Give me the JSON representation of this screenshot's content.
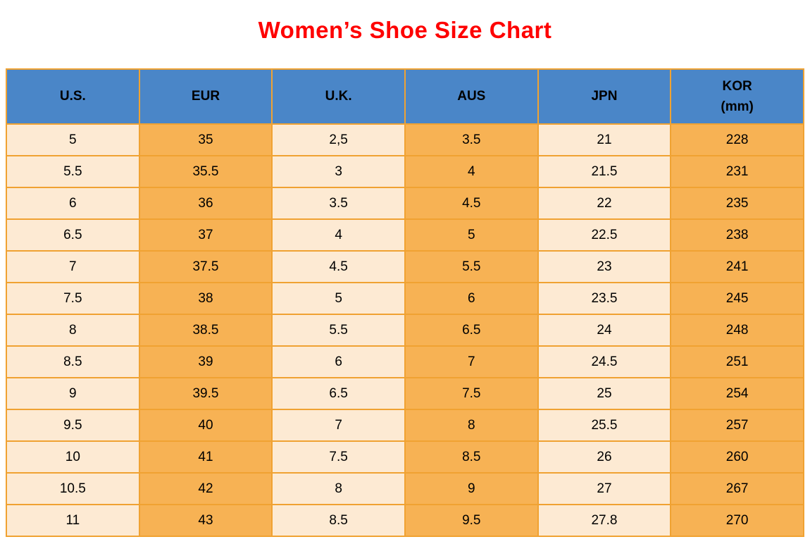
{
  "page_title": "Women’s Shoe Size Chart",
  "colors": {
    "title_red": "#fe0000",
    "header_blue": "#4a86c8",
    "cell_light": "#fdead3",
    "cell_orange": "#f7b254",
    "grid_orange": "#f0a232",
    "text_black": "#000000"
  },
  "chart_data": {
    "type": "table",
    "title": "Women’s Shoe Size Chart",
    "columns": [
      "U.S.",
      "EUR",
      "U.K.",
      "AUS",
      "JPN",
      "KOR\n(mm)"
    ],
    "rows": [
      [
        "5",
        "35",
        "2,5",
        "3.5",
        "21",
        "228"
      ],
      [
        "5.5",
        "35.5",
        "3",
        "4",
        "21.5",
        "231"
      ],
      [
        "6",
        "36",
        "3.5",
        "4.5",
        "22",
        "235"
      ],
      [
        "6.5",
        "37",
        "4",
        "5",
        "22.5",
        "238"
      ],
      [
        "7",
        "37.5",
        "4.5",
        "5.5",
        "23",
        "241"
      ],
      [
        "7.5",
        "38",
        "5",
        "6",
        "23.5",
        "245"
      ],
      [
        "8",
        "38.5",
        "5.5",
        "6.5",
        "24",
        "248"
      ],
      [
        "8.5",
        "39",
        "6",
        "7",
        "24.5",
        "251"
      ],
      [
        "9",
        "39.5",
        "6.5",
        "7.5",
        "25",
        "254"
      ],
      [
        "9.5",
        "40",
        "7",
        "8",
        "25.5",
        "257"
      ],
      [
        "10",
        "41",
        "7.5",
        "8.5",
        "26",
        "260"
      ],
      [
        "10.5",
        "42",
        "8",
        "9",
        "27",
        "267"
      ],
      [
        "11",
        "43",
        "8.5",
        "9.5",
        "27.8",
        "270"
      ]
    ]
  }
}
